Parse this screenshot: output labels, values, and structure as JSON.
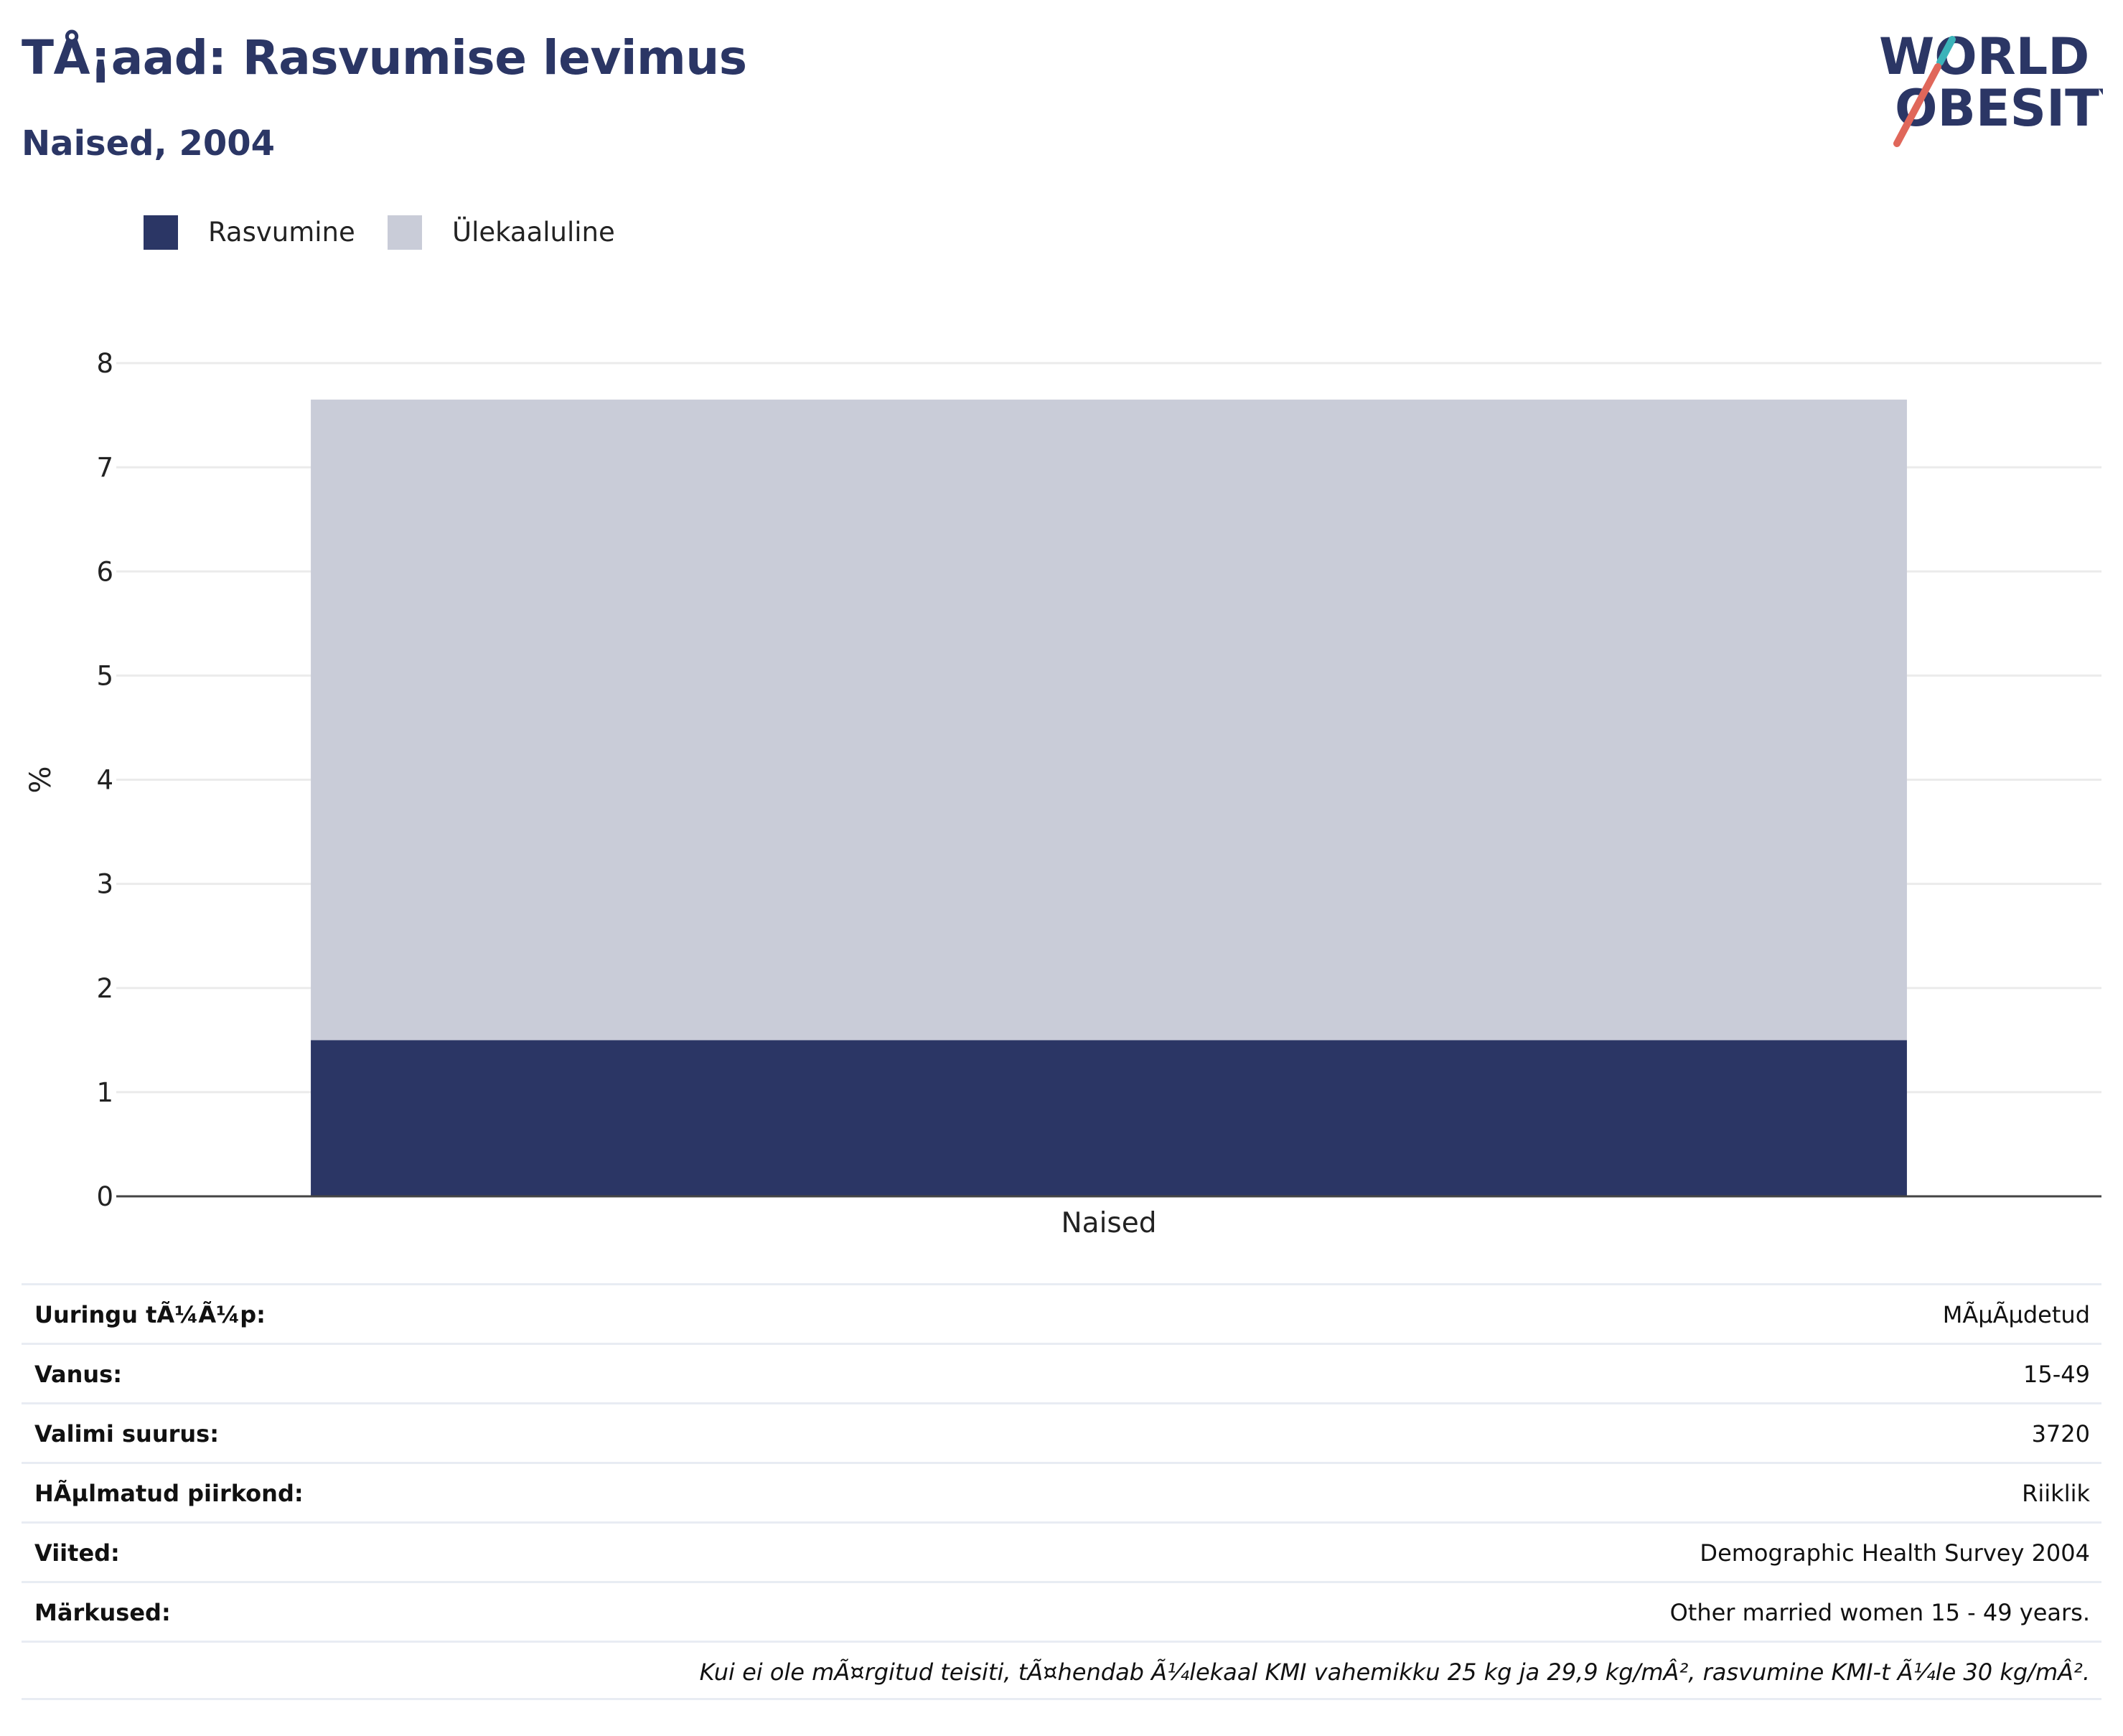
{
  "title": "TÅ¡aad: Rasvumise levimus",
  "subtitle": "Naised, 2004",
  "logo": {
    "line1": "WORLD",
    "line2": "OBESITY"
  },
  "colors": {
    "obesity": "#2b3665",
    "overweight": "#c9ccd8",
    "title": "#2b3665",
    "logo_teal": "#3bb3b9",
    "logo_coral": "#e0675a"
  },
  "legend": [
    {
      "label": "Rasvumine",
      "color": "#2b3665"
    },
    {
      "label": "Ülekaaluline",
      "color": "#c9ccd8"
    }
  ],
  "chart_data": {
    "type": "bar",
    "stacked": true,
    "categories": [
      "Naised"
    ],
    "series": [
      {
        "name": "Rasvumine",
        "values": [
          1.5
        ]
      },
      {
        "name": "Ülekaaluline",
        "values": [
          6.15
        ]
      }
    ],
    "ylabel": "%",
    "xlabel": "",
    "ylim": [
      0,
      8
    ],
    "yticks": [
      0,
      1,
      2,
      3,
      4,
      5,
      6,
      7,
      8
    ],
    "grid": true,
    "legend_position": "top-left"
  },
  "info_table": {
    "rows": [
      {
        "label": "Uuringu tÃ¼Ã¼p:",
        "value": "MÃµÃµdetud"
      },
      {
        "label": "Vanus:",
        "value": "15-49"
      },
      {
        "label": "Valimi suurus:",
        "value": "3720"
      },
      {
        "label": "HÃµlmatud piirkond:",
        "value": "Riiklik"
      },
      {
        "label": "Viited:",
        "value": "Demographic Health Survey 2004"
      },
      {
        "label": "Märkused:",
        "value": "Other married women 15 - 49 years."
      }
    ],
    "footnote": "Kui ei ole mÃ¤rgitud teisiti, tÃ¤hendab Ã¼lekaal KMI vahemikku 25 kg ja 29,9 kg/mÂ², rasvumine KMI-t Ã¼le 30 kg/mÂ²."
  }
}
